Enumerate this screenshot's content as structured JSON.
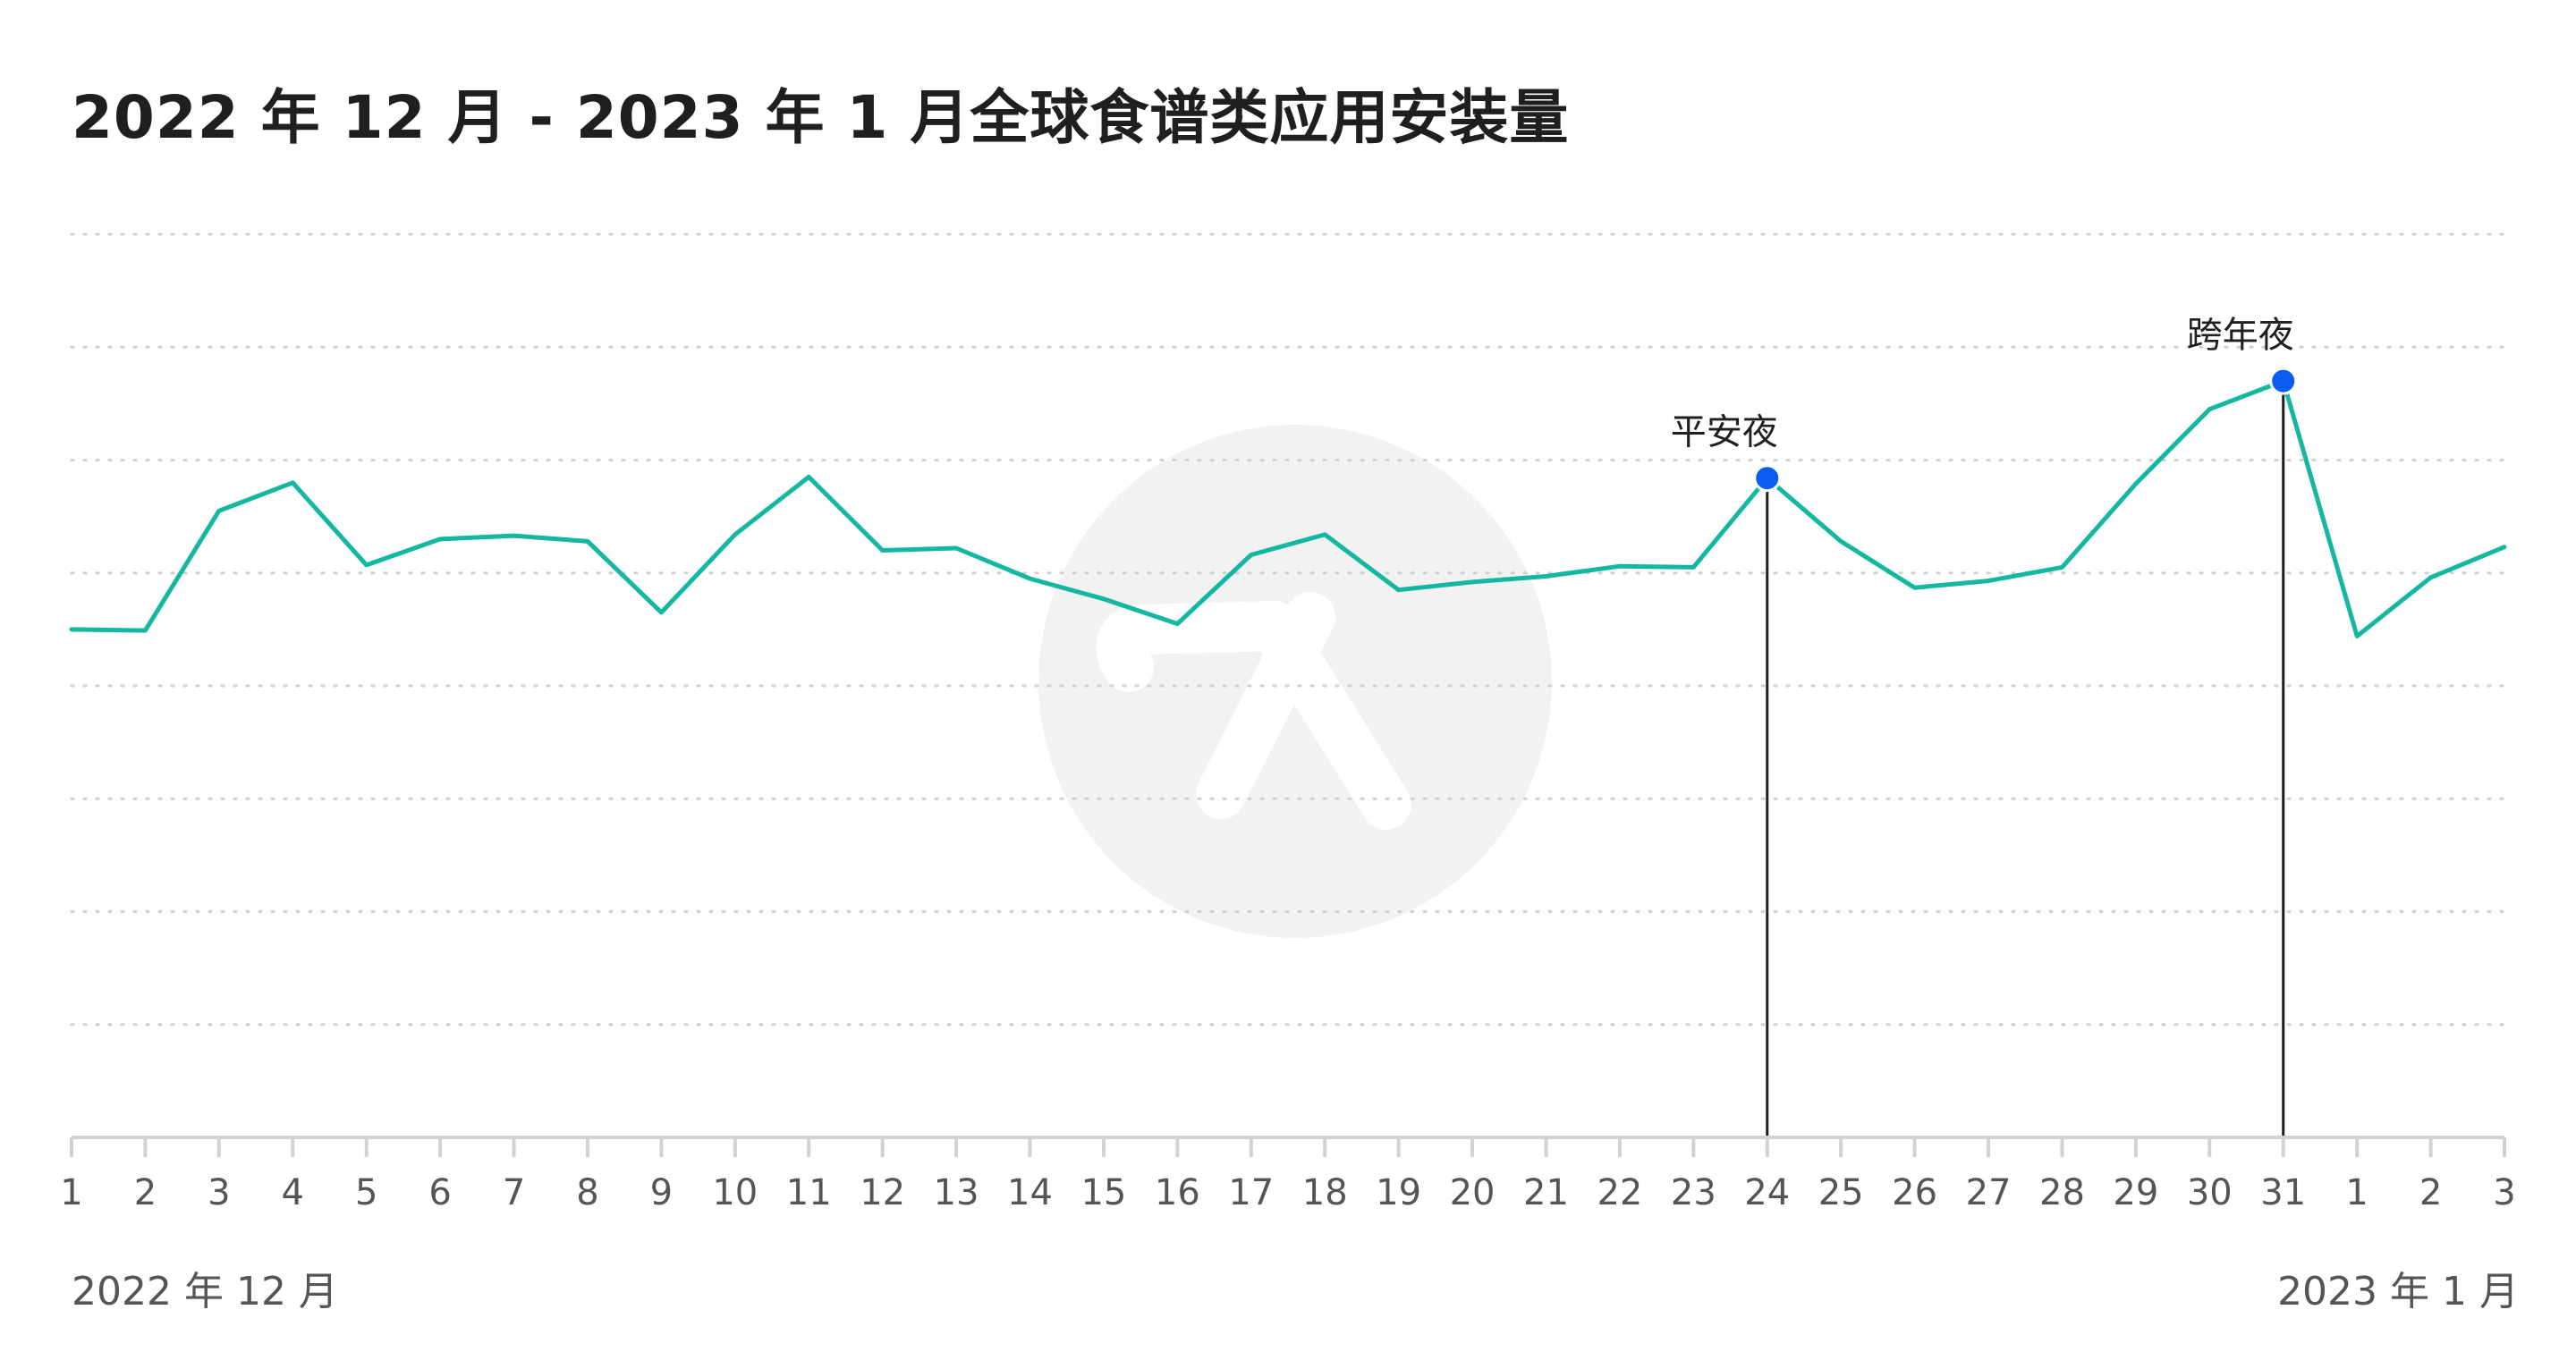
{
  "title": "2022 年 12 月 - 2023 年 1 月全球食谱类应用安装量",
  "period_start_label": "2022 年 12 月",
  "period_end_label": "2023 年 1 月",
  "colors": {
    "line": "#14b8a0",
    "marker": "#0b5cf0",
    "grid": "#cfcfcf",
    "axis": "#d2d2d2",
    "text": "#555555",
    "watermark": "#f2f2f2"
  },
  "watermark_icon": "app-logo-icon",
  "chart_data": {
    "type": "line",
    "title": "2022 年 12 月 - 2023 年 1 月全球食谱类应用安装量",
    "xlabel": "",
    "ylabel": "",
    "grid": true,
    "categories": [
      "1",
      "2",
      "3",
      "4",
      "5",
      "6",
      "7",
      "8",
      "9",
      "10",
      "11",
      "12",
      "13",
      "14",
      "15",
      "16",
      "17",
      "18",
      "19",
      "20",
      "21",
      "22",
      "23",
      "24",
      "25",
      "26",
      "27",
      "28",
      "29",
      "30",
      "31",
      "1",
      "2",
      "3"
    ],
    "series": [
      {
        "values": [
          4.5,
          4.49,
          5.55,
          5.8,
          5.07,
          5.3,
          5.33,
          5.28,
          4.65,
          5.34,
          5.85,
          5.2,
          5.22,
          4.95,
          4.77,
          4.55,
          5.16,
          5.34,
          4.85,
          4.92,
          4.97,
          5.06,
          5.05,
          5.84,
          5.28,
          4.87,
          4.93,
          5.05,
          5.79,
          6.45,
          6.7,
          4.44,
          4.96,
          5.23
        ]
      }
    ],
    "ylim": [
      0,
      8
    ],
    "annotations": [
      {
        "index": 23,
        "label": "平安夜"
      },
      {
        "index": 30,
        "label": "跨年夜"
      }
    ]
  }
}
